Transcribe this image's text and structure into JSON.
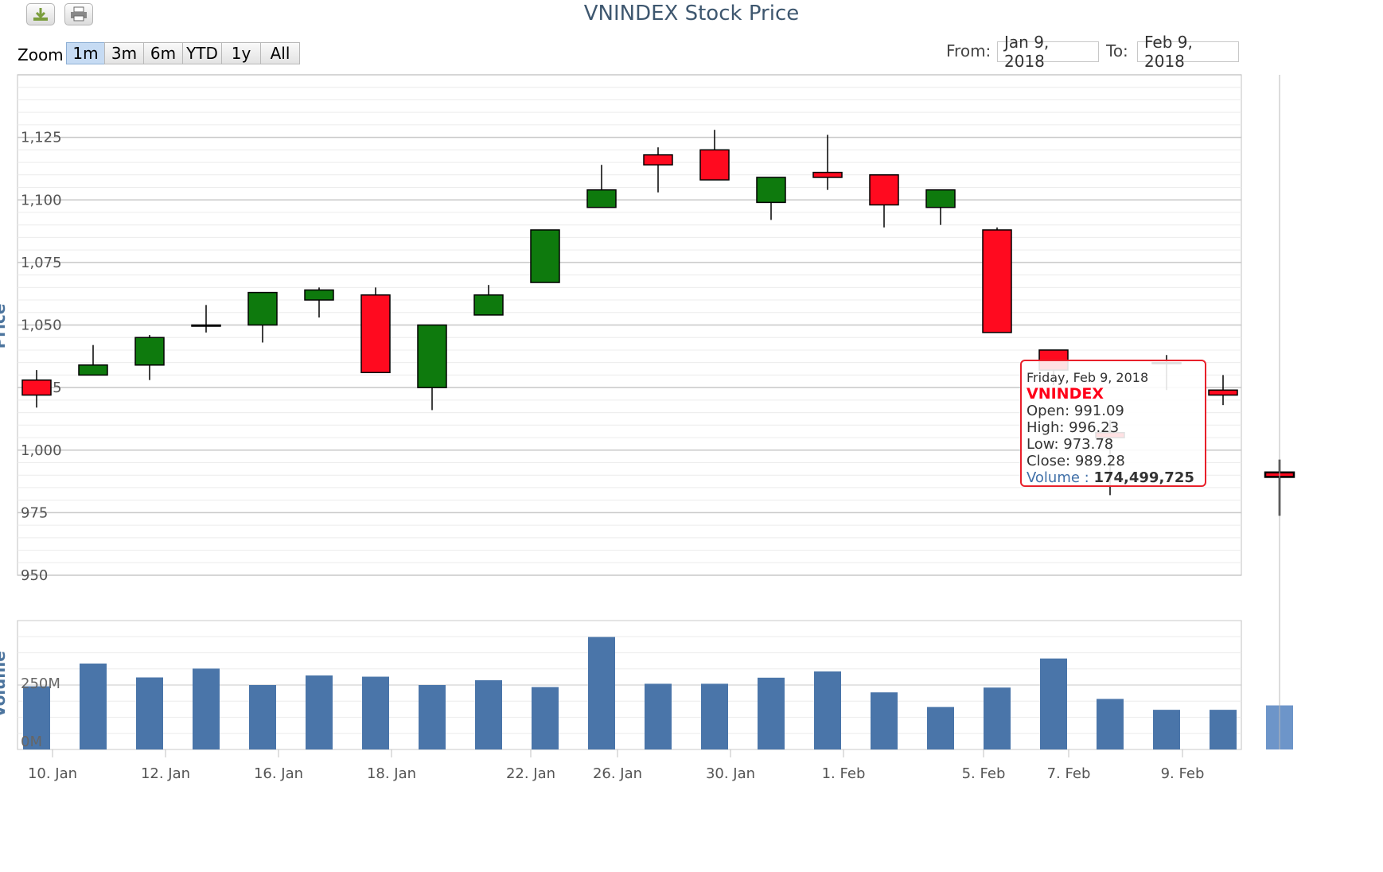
{
  "title": "VNINDEX Stock Price",
  "toolbar": {
    "download_icon": "download-icon",
    "print_icon": "print-icon"
  },
  "zoom": {
    "label": "Zoom",
    "buttons": [
      "1m",
      "3m",
      "6m",
      "YTD",
      "1y",
      "All"
    ],
    "selected": "1m"
  },
  "range": {
    "from_label": "From:",
    "from_value": "Jan 9, 2018",
    "to_label": "To:",
    "to_value": "Feb 9, 2018"
  },
  "colors": {
    "up": "#0e7a0d",
    "down": "#ff0a1f",
    "volume": "#4a75a9",
    "volume_hover": "#6d95c9",
    "tooltip_border": "#e8202a"
  },
  "tooltip": {
    "date": "Friday, Feb 9, 2018",
    "series": "VNINDEX",
    "open_label": "Open:",
    "open": "991.09",
    "high_label": "High:",
    "high": "996.23",
    "low_label": "Low:",
    "low": "973.78",
    "close_label": "Close:",
    "close": "989.28",
    "volume_label": "Volume",
    "volume": "174,499,725"
  },
  "chart_data": {
    "type": "candlestick",
    "title": "VNINDEX Stock Price",
    "price_axis": {
      "label": "Price",
      "ticks": [
        "950",
        "975",
        "1,000",
        "1,025",
        "1,050",
        "1,075",
        "1,100",
        "1,125"
      ],
      "range": [
        950,
        1150
      ]
    },
    "volume_axis": {
      "label": "Volume",
      "ticks": [
        "0M",
        "250M"
      ]
    },
    "x_ticks": [
      "10. Jan",
      "12. Jan",
      "16. Jan",
      "18. Jan",
      "22. Jan",
      "26. Jan",
      "30. Jan",
      "1. Feb",
      "5. Feb",
      "7. Feb",
      "9. Feb"
    ],
    "series": [
      {
        "date": "2018-01-10",
        "open": 1028,
        "high": 1032,
        "low": 1017,
        "close": 1022,
        "volume": 250000000
      },
      {
        "date": "2018-01-11",
        "open": 1030,
        "high": 1042,
        "low": 1030,
        "close": 1034,
        "volume": 340000000
      },
      {
        "date": "2018-01-12",
        "open": 1034,
        "high": 1046,
        "low": 1028,
        "close": 1045,
        "volume": 285000000
      },
      {
        "date": "2018-01-15",
        "open": 1050,
        "high": 1058,
        "low": 1047,
        "close": 1050,
        "volume": 320000000
      },
      {
        "date": "2018-01-16",
        "open": 1050,
        "high": 1063,
        "low": 1043,
        "close": 1063,
        "volume": 255000000
      },
      {
        "date": "2018-01-17",
        "open": 1060,
        "high": 1065,
        "low": 1053,
        "close": 1064,
        "volume": 293000000
      },
      {
        "date": "2018-01-18",
        "open": 1062,
        "high": 1065,
        "low": 1031,
        "close": 1031,
        "volume": 288000000
      },
      {
        "date": "2018-01-19",
        "open": 1025,
        "high": 1050,
        "low": 1016,
        "close": 1050,
        "volume": 255000000
      },
      {
        "date": "2018-01-22",
        "open": 1054,
        "high": 1066,
        "low": 1054,
        "close": 1062,
        "volume": 274000000
      },
      {
        "date": "2018-01-23",
        "open": 1067,
        "high": 1087,
        "low": 1067,
        "close": 1088,
        "volume": 247000000
      },
      {
        "date": "2018-01-24",
        "open": 1097,
        "high": 1114,
        "low": 1097,
        "close": 1104,
        "volume": 445000000
      },
      {
        "date": "2018-01-25",
        "open": 1118,
        "high": 1121,
        "low": 1103,
        "close": 1114,
        "volume": 260000000
      },
      {
        "date": "2018-01-26",
        "open": 1120,
        "high": 1128,
        "low": 1108,
        "close": 1108,
        "volume": 260000000
      },
      {
        "date": "2018-01-29",
        "open": 1099,
        "high": 1109,
        "low": 1092,
        "close": 1109,
        "volume": 284000000
      },
      {
        "date": "2018-01-30",
        "open": 1111,
        "high": 1126,
        "low": 1104,
        "close": 1109,
        "volume": 309000000
      },
      {
        "date": "2018-01-31",
        "open": 1110,
        "high": 1110,
        "low": 1089,
        "close": 1098,
        "volume": 226000000
      },
      {
        "date": "2018-02-01",
        "open": 1097,
        "high": 1104,
        "low": 1090,
        "close": 1104,
        "volume": 168000000
      },
      {
        "date": "2018-02-02",
        "open": 1088,
        "high": 1089,
        "low": 1047,
        "close": 1047,
        "volume": 245000000
      },
      {
        "date": "2018-02-05",
        "open": 1040,
        "high": 1037,
        "low": 1026,
        "close": 1032,
        "volume": 360000000
      },
      {
        "date": "2018-02-06",
        "open": 1007,
        "high": 1012,
        "low": 982,
        "close": 1005,
        "volume": 200000000
      },
      {
        "date": "2018-02-07",
        "open": 1035,
        "high": 1038,
        "low": 1024,
        "close": 1035,
        "volume": 157000000
      },
      {
        "date": "2018-02-08",
        "open": 1024,
        "high": 1030,
        "low": 1018,
        "close": 1022,
        "volume": 157000000
      },
      {
        "date": "2018-02-09",
        "open": 991.09,
        "high": 996.23,
        "low": 973.78,
        "close": 989.28,
        "volume": 174499725
      }
    ]
  }
}
